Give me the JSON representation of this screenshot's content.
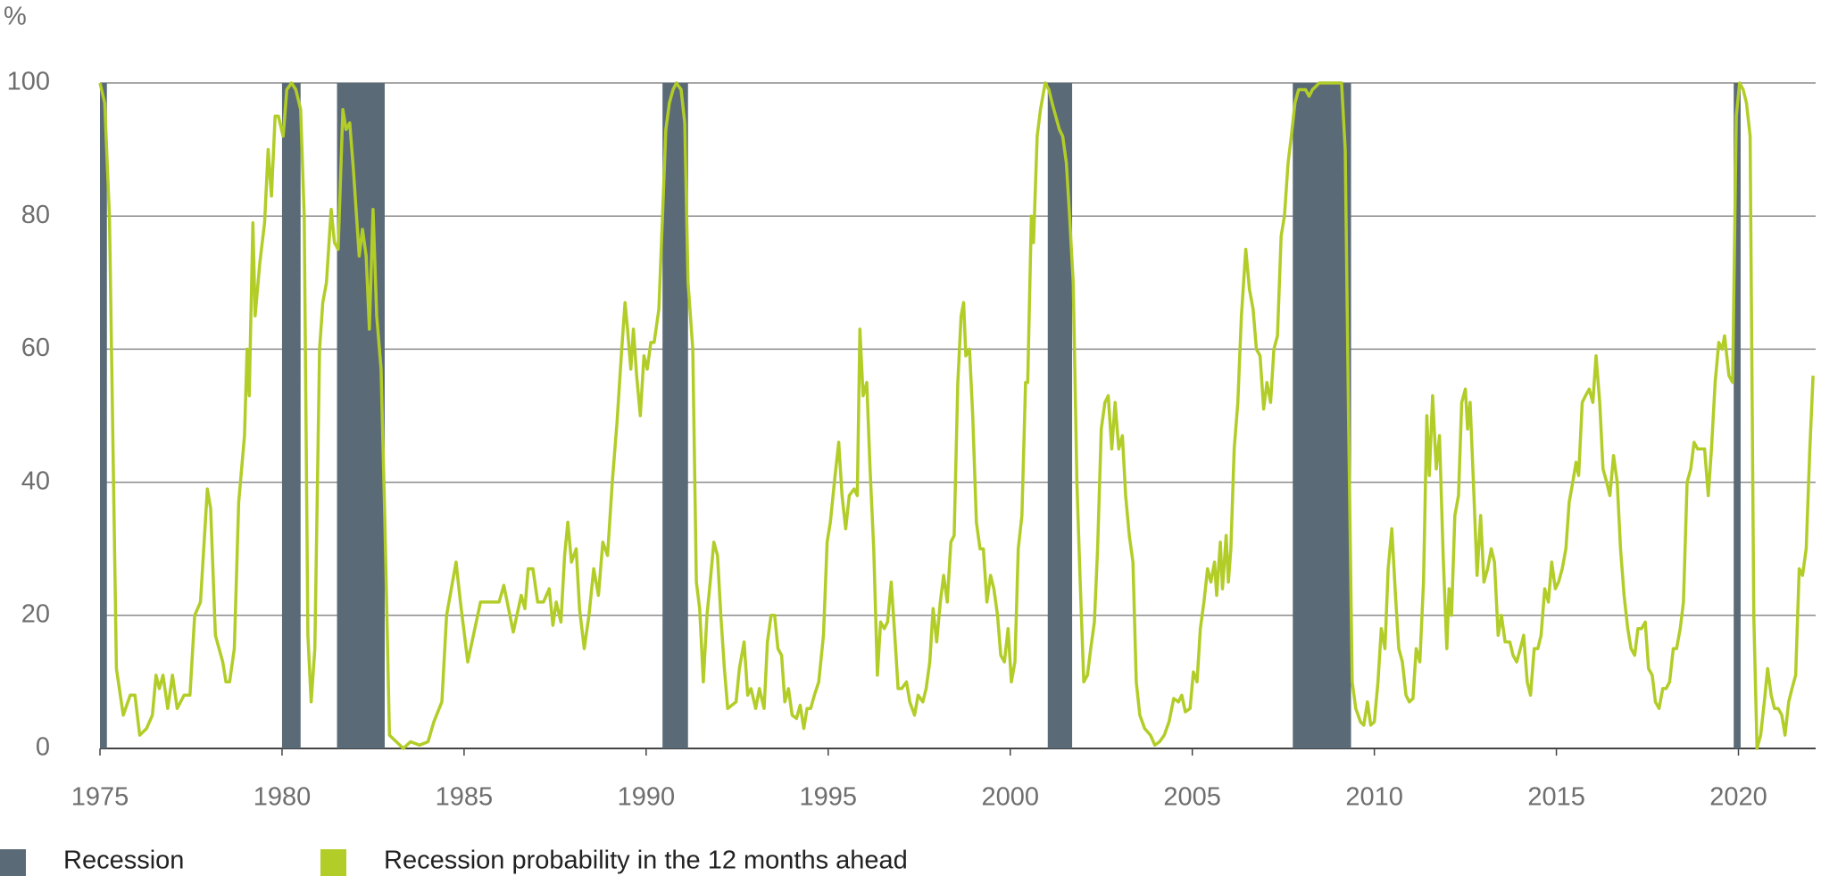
{
  "chart_data": {
    "type": "line",
    "y_label": "%",
    "xlim": [
      1975,
      2022.12
    ],
    "ylim": [
      0,
      100
    ],
    "xticks": [
      1975,
      1980,
      1985,
      1990,
      1995,
      2000,
      2005,
      2010,
      2015,
      2020
    ],
    "yticks": [
      0,
      20,
      40,
      60,
      80,
      100
    ],
    "grid": true,
    "series": [
      {
        "name": "Recession",
        "color": "#5a6a76",
        "spans": [
          [
            1975.0,
            1975.19
          ],
          [
            1980.0,
            1980.51
          ],
          [
            1981.51,
            1982.82
          ],
          [
            1990.45,
            1991.15
          ],
          [
            2001.03,
            2001.7
          ],
          [
            2007.76,
            2009.36
          ],
          [
            2019.87,
            2020.06
          ]
        ]
      },
      {
        "name": "Recession probability in the 12 months ahead",
        "color": "#b2cd28",
        "x": [
          1975.0,
          1975.13,
          1975.26,
          1975.45,
          1975.64,
          1975.83,
          1975.96,
          1976.09,
          1976.28,
          1976.44,
          1976.54,
          1976.63,
          1976.73,
          1976.86,
          1976.99,
          1977.12,
          1977.31,
          1977.47,
          1977.6,
          1977.76,
          1977.95,
          1978.04,
          1978.17,
          1978.37,
          1978.46,
          1978.56,
          1978.69,
          1978.81,
          1978.97,
          1979.04,
          1979.1,
          1979.2,
          1979.26,
          1979.39,
          1979.52,
          1979.62,
          1979.71,
          1979.81,
          1979.9,
          1980.03,
          1980.13,
          1980.26,
          1980.38,
          1980.51,
          1980.61,
          1980.71,
          1980.8,
          1980.9,
          1981.03,
          1981.12,
          1981.22,
          1981.35,
          1981.44,
          1981.54,
          1981.67,
          1981.76,
          1981.86,
          1981.96,
          1982.12,
          1982.21,
          1982.31,
          1982.4,
          1982.5,
          1982.6,
          1982.72,
          1982.82,
          1982.95,
          1983.14,
          1983.33,
          1983.53,
          1983.78,
          1984.01,
          1984.17,
          1984.39,
          1984.52,
          1984.78,
          1984.9,
          1985.1,
          1985.45,
          1985.96,
          1986.09,
          1986.35,
          1986.57,
          1986.67,
          1986.76,
          1986.89,
          1987.02,
          1987.18,
          1987.34,
          1987.44,
          1987.53,
          1987.66,
          1987.76,
          1987.85,
          1987.95,
          1988.08,
          1988.17,
          1988.3,
          1988.43,
          1988.56,
          1988.69,
          1988.81,
          1988.94,
          1989.07,
          1989.2,
          1989.33,
          1989.42,
          1989.49,
          1989.58,
          1989.65,
          1989.74,
          1989.84,
          1989.94,
          1990.03,
          1990.13,
          1990.22,
          1990.35,
          1990.45,
          1990.54,
          1990.64,
          1990.74,
          1990.83,
          1990.96,
          1991.06,
          1991.15,
          1991.28,
          1991.38,
          1991.47,
          1991.57,
          1991.67,
          1991.76,
          1991.86,
          1991.96,
          1992.05,
          1992.15,
          1992.24,
          1992.47,
          1992.56,
          1992.69,
          1992.79,
          1992.88,
          1993.01,
          1993.11,
          1993.24,
          1993.33,
          1993.43,
          1993.53,
          1993.62,
          1993.72,
          1993.81,
          1993.91,
          1994.01,
          1994.13,
          1994.23,
          1994.33,
          1994.42,
          1994.52,
          1994.62,
          1994.74,
          1994.87,
          1994.97,
          1995.06,
          1995.19,
          1995.29,
          1995.38,
          1995.48,
          1995.58,
          1995.71,
          1995.8,
          1995.87,
          1995.96,
          1996.06,
          1996.15,
          1996.25,
          1996.35,
          1996.44,
          1996.54,
          1996.63,
          1996.73,
          1996.83,
          1996.92,
          1997.02,
          1997.15,
          1997.24,
          1997.37,
          1997.47,
          1997.6,
          1997.69,
          1997.79,
          1997.88,
          1997.98,
          1998.08,
          1998.17,
          1998.27,
          1998.37,
          1998.46,
          1998.56,
          1998.65,
          1998.72,
          1998.78,
          1998.88,
          1998.97,
          1999.07,
          1999.17,
          1999.26,
          1999.36,
          1999.46,
          1999.55,
          1999.65,
          1999.74,
          1999.84,
          1999.94,
          2000.03,
          2000.13,
          2000.22,
          2000.32,
          2000.42,
          2000.48,
          2000.58,
          2000.64,
          2000.74,
          2000.83,
          2000.96,
          2001.06,
          2001.15,
          2001.25,
          2001.35,
          2001.44,
          2001.54,
          2001.63,
          2001.73,
          2001.83,
          2001.92,
          2002.02,
          2002.12,
          2002.21,
          2002.31,
          2002.4,
          2002.5,
          2002.6,
          2002.69,
          2002.79,
          2002.88,
          2002.98,
          2003.08,
          2003.17,
          2003.27,
          2003.37,
          2003.46,
          2003.56,
          2003.69,
          2003.85,
          2003.97,
          2004.1,
          2004.23,
          2004.36,
          2004.49,
          2004.62,
          2004.71,
          2004.81,
          2004.94,
          2005.03,
          2005.13,
          2005.22,
          2005.32,
          2005.42,
          2005.51,
          2005.61,
          2005.67,
          2005.77,
          2005.83,
          2005.93,
          2005.99,
          2006.06,
          2006.15,
          2006.25,
          2006.35,
          2006.47,
          2006.57,
          2006.67,
          2006.76,
          2006.86,
          2006.96,
          2007.05,
          2007.15,
          2007.24,
          2007.34,
          2007.44,
          2007.53,
          2007.63,
          2007.72,
          2007.82,
          2007.92,
          2008.11,
          2008.21,
          2008.3,
          2008.49,
          2009.1,
          2009.2,
          2009.29,
          2009.39,
          2009.49,
          2009.62,
          2009.71,
          2009.81,
          2009.9,
          2010.0,
          2010.1,
          2010.19,
          2010.29,
          2010.38,
          2010.48,
          2010.58,
          2010.67,
          2010.77,
          2010.87,
          2010.96,
          2011.06,
          2011.15,
          2011.25,
          2011.35,
          2011.44,
          2011.51,
          2011.6,
          2011.7,
          2011.79,
          2011.89,
          2011.99,
          2012.05,
          2012.12,
          2012.21,
          2012.31,
          2012.4,
          2012.5,
          2012.56,
          2012.63,
          2012.72,
          2012.82,
          2012.92,
          2013.01,
          2013.11,
          2013.21,
          2013.3,
          2013.4,
          2013.49,
          2013.59,
          2013.72,
          2013.81,
          2013.91,
          2014.01,
          2014.1,
          2014.2,
          2014.29,
          2014.39,
          2014.49,
          2014.58,
          2014.68,
          2014.78,
          2014.87,
          2014.97,
          2015.06,
          2015.16,
          2015.26,
          2015.35,
          2015.45,
          2015.54,
          2015.61,
          2015.71,
          2015.8,
          2015.9,
          2016.0,
          2016.09,
          2016.19,
          2016.28,
          2016.38,
          2016.47,
          2016.57,
          2016.67,
          2016.76,
          2016.86,
          2016.96,
          2017.05,
          2017.15,
          2017.24,
          2017.34,
          2017.44,
          2017.53,
          2017.63,
          2017.72,
          2017.82,
          2017.92,
          2018.01,
          2018.11,
          2018.21,
          2018.3,
          2018.4,
          2018.49,
          2018.59,
          2018.69,
          2018.78,
          2018.88,
          2019.07,
          2019.17,
          2019.26,
          2019.36,
          2019.46,
          2019.55,
          2019.62,
          2019.74,
          2019.84,
          2019.94,
          2020.03,
          2020.13,
          2020.22,
          2020.32,
          2020.42,
          2020.51,
          2020.61,
          2020.71,
          2020.8,
          2020.9,
          2020.99,
          2021.09,
          2021.19,
          2021.28,
          2021.38,
          2021.47,
          2021.57,
          2021.67,
          2021.76,
          2021.86,
          2021.96,
          2022.05
        ],
        "values": [
          100,
          97,
          80,
          12,
          5,
          8,
          8,
          2,
          3,
          5,
          11,
          9,
          11,
          6,
          11,
          6,
          8,
          8,
          20,
          22,
          39,
          36,
          17,
          13,
          10,
          10,
          15,
          37,
          47,
          60,
          53,
          79,
          65,
          73,
          79,
          90,
          83,
          95,
          95,
          92,
          99,
          100,
          99,
          96,
          80,
          17,
          7,
          15,
          60,
          67,
          70,
          81,
          76,
          75,
          96,
          93,
          94,
          87,
          74,
          78,
          74,
          63,
          81,
          65,
          57,
          35,
          2,
          1,
          0,
          1,
          0.5,
          1,
          4,
          7,
          20,
          28,
          22,
          13,
          22,
          22,
          24.5,
          17.5,
          23,
          21,
          27,
          27,
          22,
          22,
          24,
          18.5,
          22,
          19,
          29,
          34,
          28,
          30,
          21,
          15,
          20,
          27,
          23,
          31,
          29,
          40,
          49,
          60,
          67,
          63,
          57,
          63,
          56,
          50,
          59,
          57,
          61,
          61,
          66,
          80,
          93,
          97,
          99,
          100,
          99,
          94,
          70,
          60,
          25,
          21,
          10,
          20,
          25,
          31,
          29,
          20,
          12,
          6,
          7,
          12,
          16,
          8,
          9,
          6,
          9,
          6,
          16,
          20,
          20,
          15,
          14,
          7,
          9,
          5,
          4.5,
          6.5,
          3,
          6,
          6,
          8,
          10,
          17,
          31,
          34,
          41,
          46,
          38,
          33,
          38,
          39,
          38,
          63,
          53,
          55,
          42,
          30,
          11,
          19,
          18,
          19,
          25,
          17,
          9,
          9,
          10,
          7,
          5,
          8,
          7,
          9,
          13,
          21,
          16,
          22,
          26,
          22,
          31,
          32,
          55,
          65,
          67,
          59,
          60,
          50,
          34,
          30,
          30,
          22,
          26,
          24,
          20,
          14,
          13,
          18,
          10,
          13,
          30,
          35,
          55,
          55,
          80,
          76,
          92,
          96,
          100,
          99,
          97,
          95,
          93,
          92,
          88,
          80,
          70,
          40,
          25,
          10,
          11,
          15,
          19,
          30,
          48,
          52,
          53,
          45,
          52,
          45,
          47,
          38,
          32,
          28,
          10,
          5,
          3,
          2,
          0.5,
          1,
          2,
          4,
          7.5,
          7,
          8,
          5.5,
          6,
          11.5,
          10,
          18,
          22,
          27,
          25,
          28,
          23,
          31,
          24,
          32,
          25,
          30,
          45,
          52,
          65,
          75,
          69,
          66,
          60,
          59,
          51,
          55,
          52,
          60,
          62,
          77,
          80,
          88,
          92,
          97,
          99,
          99,
          98,
          99,
          100,
          100,
          90,
          50,
          10,
          6,
          4,
          3.5,
          7,
          3.5,
          4,
          10,
          18,
          15,
          27,
          33,
          23,
          15,
          13,
          8,
          7,
          7.5,
          15,
          13,
          25,
          50,
          41,
          53,
          42,
          47,
          29,
          15,
          24,
          20,
          35,
          38,
          52,
          54,
          48,
          52,
          40,
          26,
          35,
          25,
          27,
          30,
          28,
          17,
          20,
          16,
          16,
          14,
          13,
          15,
          17,
          10,
          8,
          15,
          15,
          17,
          24,
          22,
          28,
          24,
          25,
          27,
          30,
          37,
          40,
          43,
          41,
          52,
          53,
          54,
          52,
          59,
          52,
          42,
          40,
          38,
          44,
          40,
          30,
          23,
          18,
          15,
          14,
          18,
          18,
          19,
          12,
          11,
          7,
          6,
          9,
          9,
          10,
          15,
          15,
          18,
          22,
          40,
          42,
          46,
          45,
          45,
          38,
          45,
          55,
          61,
          60,
          62,
          56,
          55,
          95,
          100,
          99,
          97,
          92,
          20,
          0,
          2,
          7,
          12,
          8,
          6,
          6,
          5,
          2,
          7,
          9,
          11,
          27,
          26,
          30,
          45,
          56
        ]
      }
    ]
  }
}
